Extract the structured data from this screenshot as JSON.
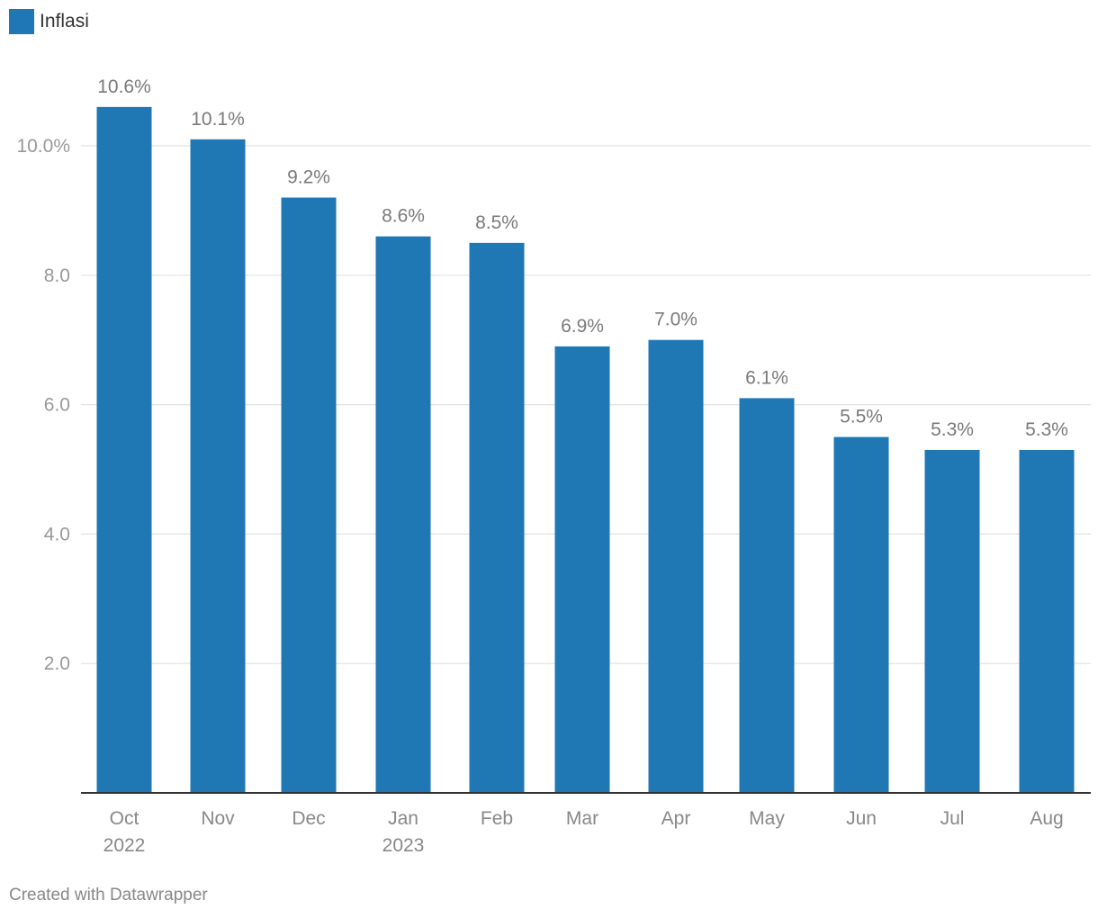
{
  "legend": {
    "label": "Inflasi",
    "color": "#1f77b4"
  },
  "footer": {
    "credit": "Created with Datawrapper"
  },
  "colors": {
    "bar": "#1f77b4",
    "grid": "#e2e2e2",
    "axis": "#333333",
    "tick_label": "#999999",
    "category_label": "#888888",
    "value_label": "#7a7a7a"
  },
  "chart_data": {
    "type": "bar",
    "categories": [
      [
        "Oct",
        "2022"
      ],
      [
        "Nov"
      ],
      [
        "Dec"
      ],
      [
        "Jan",
        "2023"
      ],
      [
        "Feb"
      ],
      [
        "Mar"
      ],
      [
        "Apr"
      ],
      [
        "May"
      ],
      [
        "Jun"
      ],
      [
        "Jul"
      ],
      [
        "Aug"
      ]
    ],
    "series": [
      {
        "name": "Inflasi",
        "values": [
          10.6,
          10.1,
          9.2,
          8.6,
          8.5,
          6.9,
          7.0,
          6.1,
          5.5,
          5.3,
          5.3
        ]
      }
    ],
    "value_labels": [
      "10.6%",
      "10.1%",
      "9.2%",
      "8.6%",
      "8.5%",
      "6.9%",
      "7.0%",
      "6.1%",
      "5.5%",
      "5.3%",
      "5.3%"
    ],
    "yticks": [
      2,
      4,
      6,
      8,
      10
    ],
    "ytick_labels": [
      "2.0",
      "4.0",
      "6.0",
      "8.0",
      "10.0%"
    ],
    "ylim": [
      0,
      10.6
    ],
    "grid": true,
    "legend_position": "top-left",
    "xlabel": "",
    "ylabel": ""
  }
}
